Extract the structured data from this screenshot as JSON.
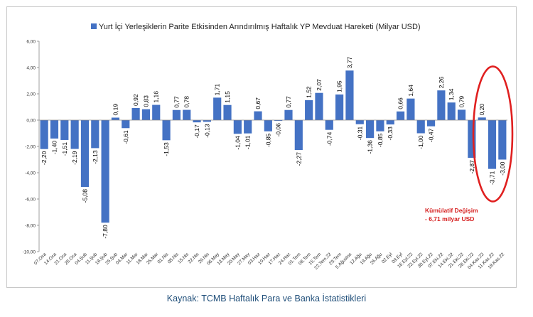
{
  "source": "Kaynak: TCMB Haftalık Para ve Banka İstatistikleri",
  "annotation": [
    "Kümülatif Değişim",
    "- 6,71 milyar USD"
  ],
  "colors": {
    "bar": "#4472c4",
    "highlight": "#e02020",
    "annotation": "#d62020"
  },
  "chart_data": {
    "type": "bar",
    "title": "Yurt İçi Yerleşiklerin Parite Etkisinden Arındırılmış Haftalık YP Mevduat Hareketi (Milyar USD)",
    "legend": "top-center",
    "ylim": [
      -10,
      6
    ],
    "ytick_step": 2,
    "yticks": [
      "6,00",
      "4,00",
      "2,00",
      "0,00",
      "-2,00",
      "-4,00",
      "-6,00",
      "-8,00",
      "-10,00"
    ],
    "categories": [
      "07.Oca",
      "14.Oca",
      "21.Oca",
      "28.Oca",
      "04.Şub",
      "11.Şub",
      "18.Şub",
      "25.Şub",
      "04.Mar",
      "11.Mar",
      "18.Mar",
      "25.Mar",
      "01.Nis",
      "08.Nis",
      "15.Nis",
      "22.Nis",
      "29.Nis",
      "06.May",
      "13.May",
      "20.May",
      "27.May",
      "03.Haz",
      "10.Haz",
      "17.Haz",
      "24.Haz",
      "01.Tem",
      "08.Tem",
      "15.Tem",
      "22.Tem.22",
      "29.Tem",
      "5.Ağustos",
      "12.Ağu",
      "19.Ağu",
      "26.Ağu",
      "02.Eyl",
      "09.Eyl",
      "16.Eyl.22",
      "23.Eyl.22",
      "30.Eyl.22",
      "07.Eki.22",
      "14.Eki.22",
      "21.Eki.22",
      "28.Eki.22",
      "04.Kas.22",
      "11.Kas.22",
      "18.Kas.22"
    ],
    "values": [
      -2.2,
      -1.4,
      -1.51,
      -2.19,
      -5.08,
      -2.13,
      -7.8,
      0.19,
      -0.61,
      0.92,
      0.83,
      1.16,
      -1.53,
      0.77,
      0.78,
      -0.17,
      -0.13,
      1.71,
      1.15,
      -1.04,
      -1.01,
      0.67,
      -0.85,
      -0.06,
      0.77,
      -2.27,
      1.52,
      2.07,
      -0.74,
      1.95,
      3.77,
      -0.31,
      -1.36,
      -0.85,
      -0.33,
      0.66,
      1.64,
      -1.0,
      -0.47,
      2.26,
      1.34,
      0.79,
      -2.87,
      0.2,
      -3.71,
      -3.0
    ],
    "labels": [
      "-2,20",
      "-1,40",
      "-1,51",
      "-2,19",
      "-5,08",
      "-2,13",
      "-7,80",
      "0,19",
      "-0,61",
      "0,92",
      "0,83",
      "1,16",
      "-1,53",
      "0,77",
      "0,78",
      "-0,17",
      "-0,13",
      "1,71",
      "1,15",
      "-1,04",
      "-1,01",
      "0,67",
      "-0,85",
      "-0,06",
      "0,77",
      "-2,27",
      "1,52",
      "2,07",
      "-0,74",
      "1,95",
      "3,77",
      "-0,31",
      "-1,36",
      "-0,85",
      "-0,33",
      "0,66",
      "1,64",
      "-1,00",
      "-0,47",
      "2,26",
      "1,34",
      "0,79",
      "-2,87",
      "0,20",
      "-3,71",
      "-3,00"
    ],
    "highlighted": [
      "04.Kas.22",
      "11.Kas.22",
      "18.Kas.22"
    ]
  }
}
